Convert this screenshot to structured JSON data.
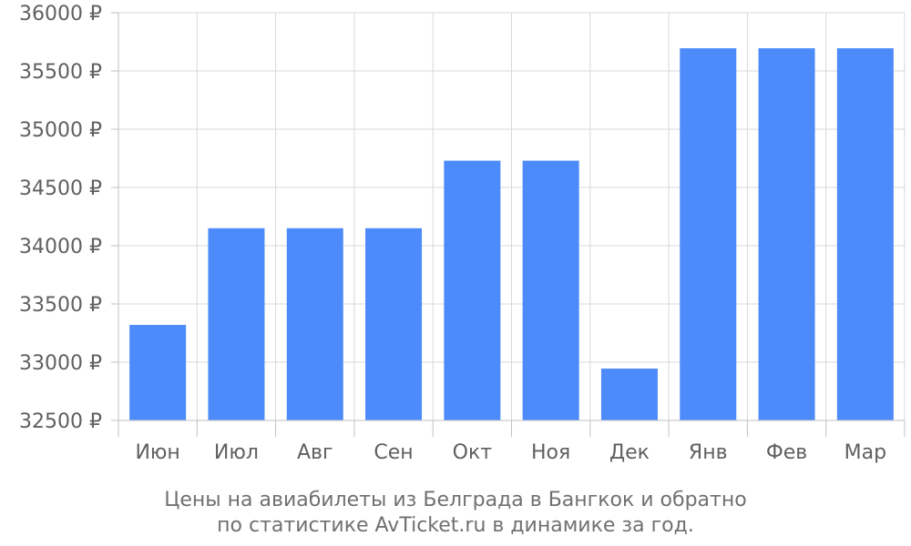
{
  "chart_data": {
    "type": "bar",
    "categories": [
      "Июн",
      "Июл",
      "Авг",
      "Сен",
      "Окт",
      "Ноя",
      "Дек",
      "Янв",
      "Фев",
      "Мар"
    ],
    "values": [
      33320,
      34150,
      34150,
      34150,
      34730,
      34730,
      32945,
      35695,
      35695,
      35695
    ],
    "ylim": [
      32500,
      36000
    ],
    "yticks": [
      32500,
      33000,
      33500,
      34000,
      34500,
      35000,
      35500,
      36000
    ],
    "ytick_suffix": " ₽",
    "title": "",
    "xlabel": "",
    "ylabel": "",
    "grid": true,
    "bar_color": "#4d8bfa",
    "caption_lines": [
      "Цены на авиабилеты из Белграда в Бангкок и обратно",
      "по статистике AvTicket.ru в динамике за год."
    ]
  }
}
